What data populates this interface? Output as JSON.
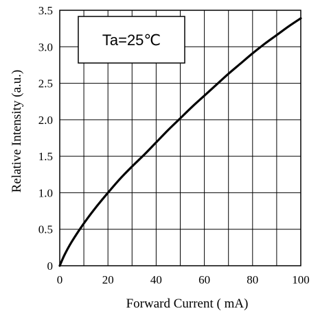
{
  "chart_data": {
    "type": "line",
    "title": "",
    "xlabel": "Forward Current ( mA)",
    "ylabel": "Relative Intensity  (a.u.)",
    "xlim": [
      0,
      100
    ],
    "ylim": [
      0,
      3.5
    ],
    "grid": true,
    "xticks": [
      0,
      10,
      20,
      30,
      40,
      50,
      60,
      70,
      80,
      90,
      100
    ],
    "xtick_labels": [
      "0",
      "",
      "20",
      "",
      "40",
      "",
      "60",
      "",
      "80",
      "",
      "100"
    ],
    "yticks": [
      0,
      0.5,
      1.0,
      1.5,
      2.0,
      2.5,
      3.0,
      3.5
    ],
    "ytick_labels": [
      "0",
      "0.5",
      "1.0",
      "1.5",
      "2.0",
      "2.5",
      "3.0",
      "3.5"
    ],
    "annotation": "Ta=25℃",
    "series": [
      {
        "name": "",
        "x": [
          0,
          2,
          5,
          10,
          15,
          20,
          25,
          30,
          35,
          40,
          45,
          50,
          55,
          60,
          65,
          70,
          75,
          80,
          85,
          90,
          95,
          100
        ],
        "y": [
          0,
          0.15,
          0.33,
          0.58,
          0.8,
          1.0,
          1.19,
          1.36,
          1.52,
          1.69,
          1.86,
          2.02,
          2.18,
          2.33,
          2.48,
          2.63,
          2.77,
          2.91,
          3.04,
          3.16,
          3.28,
          3.39
        ]
      }
    ]
  }
}
